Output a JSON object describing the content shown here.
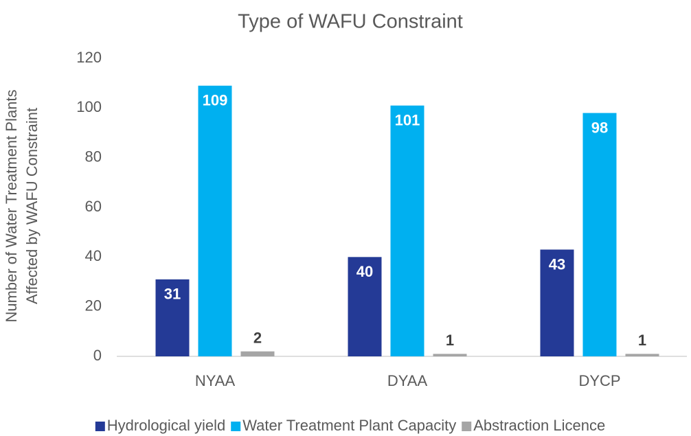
{
  "chart_data": {
    "type": "bar",
    "title": "Type of WAFU Constraint",
    "y_label": [
      "Number of Water Treatment Plants",
      "Affected by WAFU Constraint"
    ],
    "categories": [
      "NYAA",
      "DYAA",
      "DYCP"
    ],
    "series": [
      {
        "name": "Hydrological yield",
        "color": "#243a96",
        "values": [
          31,
          40,
          43
        ]
      },
      {
        "name": "Water Treatment Plant Capacity",
        "color": "#00b0f0",
        "values": [
          109,
          101,
          98
        ]
      },
      {
        "name": "Abstraction Licence",
        "color": "#a5a5a5",
        "values": [
          2,
          1,
          1
        ]
      }
    ],
    "ylim": [
      0,
      120
    ],
    "yticks": [
      0,
      20,
      40,
      60,
      80,
      100,
      120
    ],
    "grid": false,
    "legend": "bottom"
  }
}
